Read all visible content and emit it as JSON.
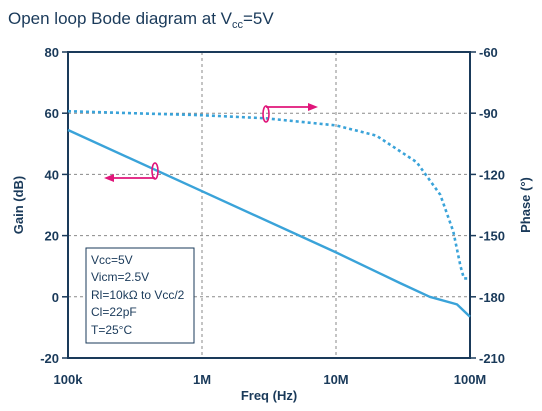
{
  "chart_data": {
    "type": "line",
    "title_parts": [
      "Open loop Bode diagram at V",
      "cc",
      "=5V"
    ],
    "xlabel": "Freq (Hz)",
    "ylabel_left": "Gain (dB)",
    "ylabel_right": "Phase (°)",
    "x_scale": "log",
    "xlim": [
      100000,
      100000000
    ],
    "x_ticks": [
      100000,
      1000000,
      10000000,
      100000000
    ],
    "x_tick_labels": [
      "100k",
      "1M",
      "10M",
      "100M"
    ],
    "ylim_left": [
      -20,
      80
    ],
    "y_ticks_left": [
      -20,
      0,
      20,
      40,
      60,
      80
    ],
    "y_tick_labels_left": [
      "-20",
      "0",
      "20",
      "40",
      "60",
      "80"
    ],
    "ylim_right": [
      -210,
      -60
    ],
    "y_ticks_right": [
      -210,
      -180,
      -150,
      -120,
      -90,
      -60
    ],
    "y_tick_labels_right": [
      "-210",
      "-180",
      "-150",
      "-120",
      "-90",
      "-60"
    ],
    "grid": true,
    "series": [
      {
        "axis": "left",
        "style": "solid",
        "color": "#3aa3d9",
        "x": [
          100000,
          1000000,
          10000000,
          30000000,
          50000000,
          80000000,
          100000000
        ],
        "y": [
          54.5,
          34.5,
          14.5,
          4.5,
          0,
          -2.5,
          -6.5
        ]
      },
      {
        "axis": "right",
        "style": "dotted",
        "color": "#3aa3d9",
        "x": [
          100000,
          300000,
          1000000,
          3000000,
          10000000,
          20000000,
          40000000,
          60000000,
          75000000,
          85000000,
          90000000,
          100000000
        ],
        "y": [
          -89,
          -90,
          -91,
          -92.5,
          -96,
          -101,
          -114,
          -130,
          -148,
          -165,
          -171,
          -171
        ]
      }
    ],
    "legend_lines": [
      "Vcc=5V",
      "Vicm=2.5V",
      "Rl=10kΩ to Vcc/2",
      "Cl=22pF",
      "T=25°C"
    ],
    "legend_position": "bottom-left",
    "annotations": [
      {
        "points_to": "left",
        "color": "#e0157a",
        "attached_series": 0
      },
      {
        "points_to": "right",
        "color": "#e0157a",
        "attached_series": 1
      }
    ]
  }
}
